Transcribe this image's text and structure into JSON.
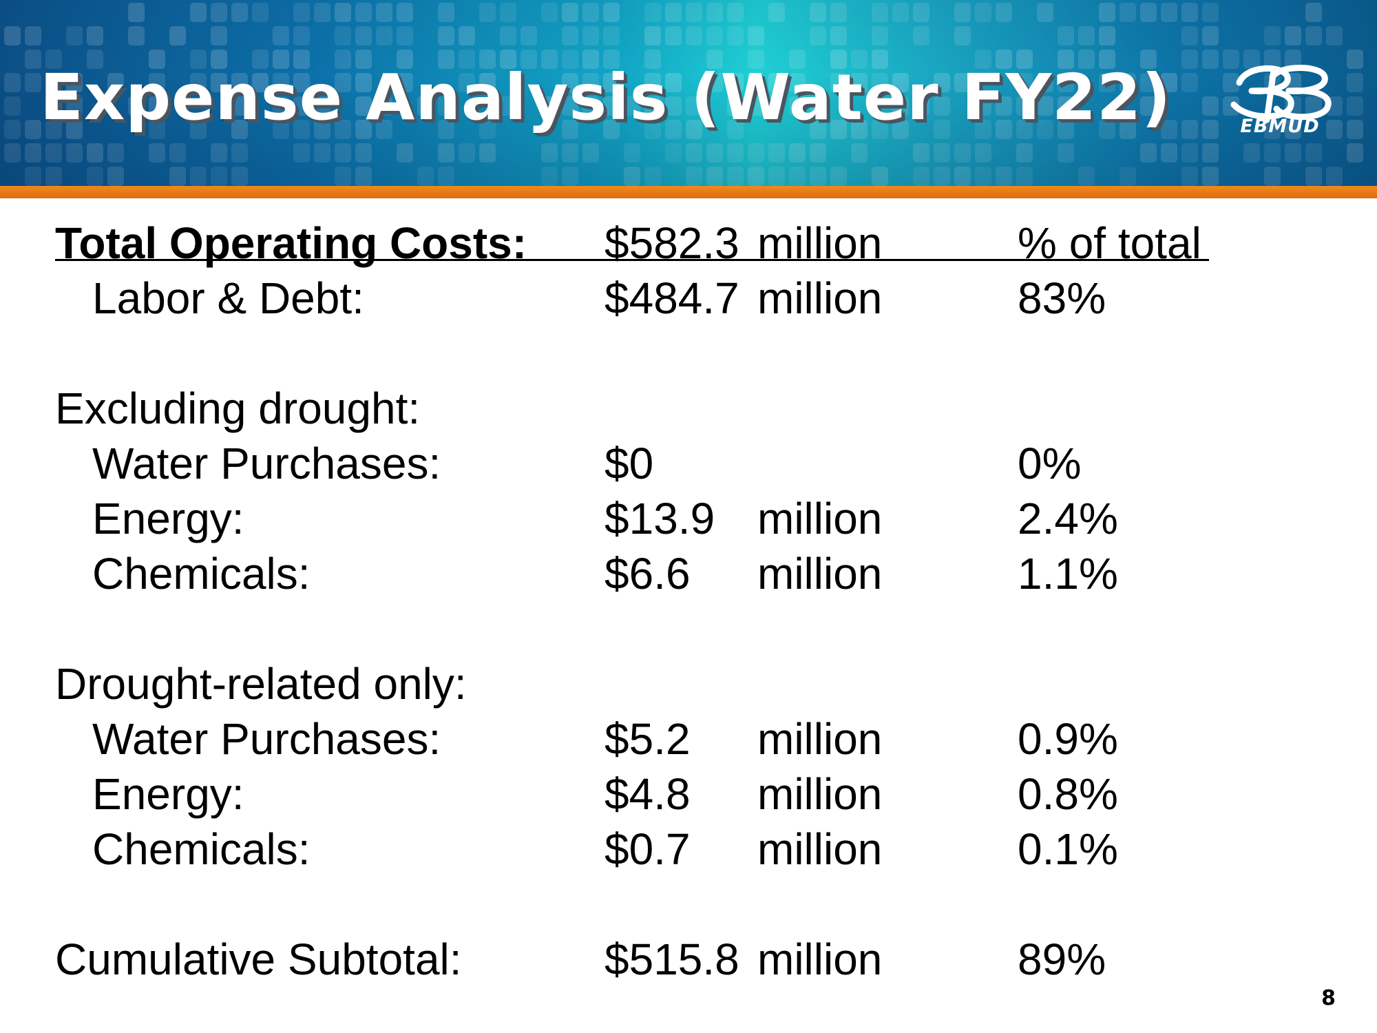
{
  "slide": {
    "title": "Expense Analysis (Water FY22)",
    "logo_text": "EBMUD",
    "page_number": "8"
  },
  "colors": {
    "banner_dark": "#0b4f86",
    "banner_light": "#1fd0d4",
    "accent_bar": "#e06a10",
    "title_text": "#ffffff"
  },
  "table": {
    "header": {
      "label": "Total Operating Costs:",
      "amount": "$582.3",
      "unit": "million",
      "pct": "% of total"
    },
    "labor_debt": {
      "label": "Labor & Debt:",
      "amount": "$484.7",
      "unit": "million",
      "pct": "83%"
    },
    "excluding": {
      "heading": "Excluding drought:",
      "rows": [
        {
          "label": "Water Purchases:",
          "amount": "$0",
          "unit": "",
          "pct": "0%"
        },
        {
          "label": "Energy:",
          "amount": "$13.9",
          "unit": "million",
          "pct": "2.4%"
        },
        {
          "label": "Chemicals:",
          "amount": "$6.6",
          "unit": "million",
          "pct": "1.1%"
        }
      ]
    },
    "drought": {
      "heading": "Drought-related only:",
      "rows": [
        {
          "label": "Water Purchases:",
          "amount": "$5.2",
          "unit": "million",
          "pct": "0.9%"
        },
        {
          "label": "Energy:",
          "amount": "$4.8",
          "unit": "million",
          "pct": "0.8%"
        },
        {
          "label": "Chemicals:",
          "amount": "$0.7",
          "unit": "million",
          "pct": "0.1%"
        }
      ]
    },
    "subtotal": {
      "label": "Cumulative Subtotal:",
      "amount": "$515.8",
      "unit": "million",
      "pct": "89%"
    }
  }
}
